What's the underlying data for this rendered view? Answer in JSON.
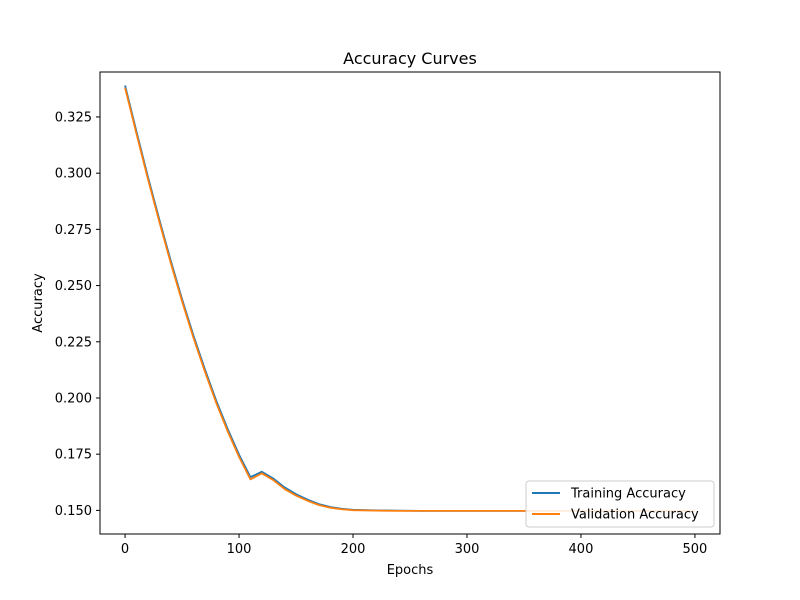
{
  "chart_data": {
    "type": "line",
    "title": "Accuracy Curves",
    "xlabel": "Epochs",
    "ylabel": "Accuracy",
    "xlim": [
      -22,
      522
    ],
    "ylim": [
      0.1395,
      0.345
    ],
    "xticks": [
      0,
      100,
      200,
      300,
      400,
      500
    ],
    "xtick_labels": [
      "0",
      "100",
      "200",
      "300",
      "400",
      "500"
    ],
    "yticks": [
      0.15,
      0.175,
      0.2,
      0.225,
      0.25,
      0.275,
      0.3,
      0.325
    ],
    "ytick_labels": [
      "0.150",
      "0.175",
      "0.200",
      "0.225",
      "0.250",
      "0.275",
      "0.300",
      "0.325"
    ],
    "grid": false,
    "legend_position": "lower-right",
    "x": [
      0,
      10,
      20,
      30,
      40,
      50,
      60,
      70,
      80,
      90,
      100,
      110,
      120,
      130,
      140,
      150,
      160,
      170,
      180,
      190,
      200,
      220,
      240,
      260,
      280,
      300,
      350,
      400,
      450,
      500
    ],
    "series": [
      {
        "name": "Training Accuracy",
        "color": "#1f77b4",
        "values": [
          0.339,
          0.3185,
          0.2985,
          0.2795,
          0.2612,
          0.244,
          0.2278,
          0.2128,
          0.1988,
          0.1862,
          0.1748,
          0.1648,
          0.1672,
          0.1642,
          0.1602,
          0.1572,
          0.1548,
          0.1528,
          0.1515,
          0.1507,
          0.1503,
          0.15,
          0.1499,
          0.1498,
          0.1498,
          0.1498,
          0.1498,
          0.1498,
          0.1498,
          0.1498
        ]
      },
      {
        "name": "Validation Accuracy",
        "color": "#ff7f0e",
        "values": [
          0.338,
          0.3175,
          0.2975,
          0.2785,
          0.2602,
          0.243,
          0.2268,
          0.2118,
          0.1978,
          0.1852,
          0.1738,
          0.1638,
          0.1665,
          0.1635,
          0.1595,
          0.1566,
          0.1543,
          0.1524,
          0.1512,
          0.1505,
          0.1501,
          0.1499,
          0.1498,
          0.1498,
          0.1498,
          0.1498,
          0.1498,
          0.1498,
          0.1498,
          0.1498
        ]
      }
    ]
  }
}
